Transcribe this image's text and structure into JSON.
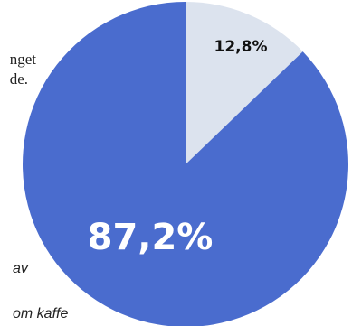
{
  "background_text": {
    "line1": "nget",
    "line2": "de.",
    "line3": "av",
    "line4": "om kaffe"
  },
  "chart_data": {
    "type": "pie",
    "slices": [
      {
        "label": "12,8%",
        "value": 12.8,
        "color": "#dce3ee"
      },
      {
        "label": "87,2%",
        "value": 87.2,
        "color": "#4a6cce"
      }
    ],
    "start_angle_deg": 0,
    "direction": "clockwise"
  },
  "colors": {
    "small_label": "#111111",
    "large_label": "#ffffff",
    "background": "#ffffff"
  }
}
